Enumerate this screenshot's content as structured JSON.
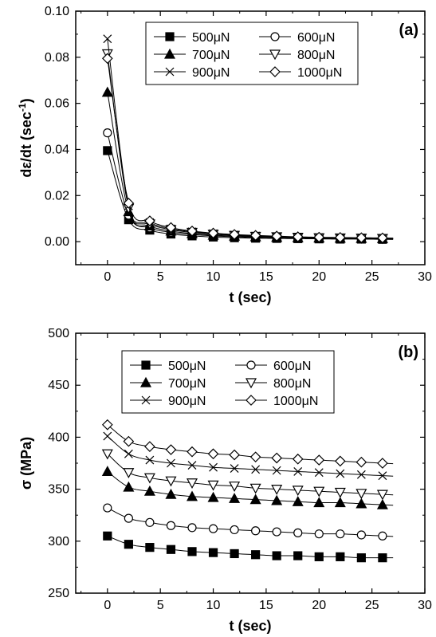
{
  "chart_data": [
    {
      "type": "line",
      "panel_label": "(a)",
      "xlabel": "t (sec)",
      "ylabel": "dε/dt (sec⁻¹)",
      "xlim": [
        -3,
        30
      ],
      "ylim": [
        -0.01,
        0.1
      ],
      "xticks": [
        0,
        5,
        10,
        15,
        20,
        25,
        30
      ],
      "yticks": [
        0.0,
        0.02,
        0.04,
        0.06,
        0.08,
        0.1
      ],
      "ytick_decimals": 2,
      "grid": false,
      "legend_position": "top-right",
      "x": [
        0,
        2,
        4,
        6,
        8,
        10,
        12,
        14,
        16,
        18,
        20,
        22,
        24,
        26
      ],
      "series": [
        {
          "name": "500μN",
          "marker": "square-filled",
          "values": [
            0.0395,
            0.0095,
            0.005,
            0.0033,
            0.0025,
            0.002,
            0.0017,
            0.0015,
            0.0014,
            0.0013,
            0.0012,
            0.0011,
            0.0011,
            0.001
          ]
        },
        {
          "name": "600μN",
          "marker": "circle-open",
          "values": [
            0.0472,
            0.0115,
            0.006,
            0.004,
            0.0031,
            0.0025,
            0.0021,
            0.0018,
            0.0016,
            0.0015,
            0.0014,
            0.0013,
            0.0012,
            0.0012
          ]
        },
        {
          "name": "700μN",
          "marker": "triangle-up-filled",
          "values": [
            0.0648,
            0.013,
            0.0068,
            0.0046,
            0.0035,
            0.0028,
            0.0024,
            0.0021,
            0.0019,
            0.0017,
            0.0016,
            0.0015,
            0.0014,
            0.0013
          ]
        },
        {
          "name": "800μN",
          "marker": "triangle-down-open",
          "values": [
            0.0815,
            0.0145,
            0.0077,
            0.0052,
            0.004,
            0.0032,
            0.0027,
            0.0023,
            0.0021,
            0.0019,
            0.0017,
            0.0016,
            0.0015,
            0.0014
          ]
        },
        {
          "name": "900μN",
          "marker": "x-cross",
          "values": [
            0.088,
            0.0155,
            0.0083,
            0.0056,
            0.0043,
            0.0035,
            0.0029,
            0.0025,
            0.0022,
            0.002,
            0.0018,
            0.0017,
            0.0016,
            0.0015
          ]
        },
        {
          "name": "1000μN",
          "marker": "diamond-open",
          "values": [
            0.0795,
            0.0167,
            0.009,
            0.0061,
            0.0046,
            0.0037,
            0.0031,
            0.0027,
            0.0024,
            0.0021,
            0.0019,
            0.0018,
            0.0017,
            0.0016
          ]
        }
      ]
    },
    {
      "type": "line",
      "panel_label": "(b)",
      "xlabel": "t (sec)",
      "ylabel": "σ (MPa)",
      "xlim": [
        -3,
        30
      ],
      "ylim": [
        250,
        500
      ],
      "xticks": [
        0,
        5,
        10,
        15,
        20,
        25,
        30
      ],
      "yticks": [
        250,
        300,
        350,
        400,
        450,
        500
      ],
      "ytick_decimals": 0,
      "grid": false,
      "legend_position": "top-right",
      "x": [
        0,
        2,
        4,
        6,
        8,
        10,
        12,
        14,
        16,
        18,
        20,
        22,
        24,
        26
      ],
      "series": [
        {
          "name": "500μN",
          "marker": "square-filled",
          "values": [
            305,
            297,
            294,
            292,
            290,
            289,
            288,
            287,
            286,
            286,
            285,
            285,
            284,
            284
          ]
        },
        {
          "name": "600μN",
          "marker": "circle-open",
          "values": [
            332,
            322,
            318,
            315,
            313,
            312,
            311,
            310,
            309,
            308,
            307,
            307,
            306,
            305
          ]
        },
        {
          "name": "700μN",
          "marker": "triangle-up-filled",
          "values": [
            367,
            352,
            348,
            345,
            343,
            342,
            341,
            340,
            339,
            338,
            337,
            337,
            336,
            335
          ]
        },
        {
          "name": "800μN",
          "marker": "triangle-down-open",
          "values": [
            384,
            366,
            361,
            358,
            356,
            354,
            353,
            351,
            350,
            349,
            348,
            347,
            346,
            345
          ]
        },
        {
          "name": "900μN",
          "marker": "x-cross",
          "values": [
            401,
            384,
            378,
            375,
            373,
            371,
            370,
            369,
            368,
            367,
            366,
            365,
            364,
            363
          ]
        },
        {
          "name": "1000μN",
          "marker": "diamond-open",
          "values": [
            412,
            396,
            391,
            388,
            386,
            384,
            383,
            381,
            380,
            379,
            378,
            377,
            376,
            375
          ]
        }
      ]
    }
  ]
}
